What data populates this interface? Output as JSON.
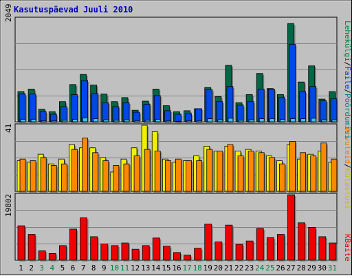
{
  "title": "Kasutuspäevad Juuli 2010",
  "colors": {
    "background": "#C0C0C0",
    "title": "#0000C0",
    "weekend_label": "#008040",
    "weekday_label": "#000000",
    "pages": "#006644",
    "files": "#0047E8",
    "hits": "#40C0E0",
    "visits": "#F0F000",
    "visitors": "#FF8800",
    "bytes": "#EE0000"
  },
  "legend": {
    "top": [
      {
        "label": "Lehekülgi",
        "color": "#008040"
      },
      {
        "label": "/",
        "color": "#000000"
      },
      {
        "label": "Faile",
        "color": "#0040C0"
      },
      {
        "label": "/",
        "color": "#000000"
      },
      {
        "label": "Pöördumisi",
        "color": "#008080"
      }
    ],
    "middle": [
      {
        "label": "Arvuteid",
        "color": "#E08000"
      },
      {
        "label": "/",
        "color": "#000000"
      },
      {
        "label": "Külastusi",
        "color": "#C0C000"
      }
    ],
    "bottom": [
      {
        "label": "KBaite",
        "color": "#E00000"
      }
    ]
  },
  "chart_data": [
    {
      "type": "bar",
      "panel": "top",
      "max_label": "2049",
      "ylim": [
        0,
        2049
      ],
      "categories": [
        "1",
        "2",
        "3",
        "4",
        "5",
        "6",
        "7",
        "8",
        "9",
        "10",
        "11",
        "12",
        "13",
        "14",
        "15",
        "16",
        "17",
        "18",
        "19",
        "20",
        "21",
        "22",
        "23",
        "24",
        "25",
        "26",
        "27",
        "28",
        "29",
        "30",
        "31"
      ],
      "weekend_days": [
        "3",
        "4",
        "10",
        "11",
        "17",
        "18",
        "24",
        "25",
        "31"
      ],
      "series": [
        {
          "name": "Lehekülgi",
          "values": [
            600,
            650,
            250,
            200,
            400,
            740,
            940,
            730,
            550,
            400,
            480,
            230,
            410,
            650,
            320,
            200,
            220,
            260,
            680,
            500,
            1120,
            380,
            540,
            960,
            660,
            540,
            1950,
            790,
            1110,
            450,
            600
          ]
        },
        {
          "name": "Faile",
          "values": [
            550,
            550,
            200,
            150,
            300,
            540,
            820,
            560,
            380,
            300,
            380,
            190,
            350,
            520,
            220,
            150,
            160,
            260,
            640,
            400,
            700,
            330,
            400,
            650,
            650,
            480,
            1540,
            600,
            700,
            420,
            460
          ]
        },
        {
          "name": "Pöördumisi",
          "values": [
            50,
            50,
            20,
            20,
            30,
            50,
            80,
            60,
            40,
            30,
            40,
            20,
            30,
            50,
            20,
            10,
            20,
            20,
            60,
            40,
            70,
            30,
            40,
            60,
            60,
            50,
            60,
            60,
            70,
            40,
            40
          ]
        }
      ]
    },
    {
      "type": "bar",
      "panel": "middle",
      "max_label": "41",
      "ylim": [
        0,
        41
      ],
      "categories": [
        "1",
        "2",
        "3",
        "4",
        "5",
        "6",
        "7",
        "8",
        "9",
        "10",
        "11",
        "12",
        "13",
        "14",
        "15",
        "16",
        "17",
        "18",
        "19",
        "20",
        "21",
        "22",
        "23",
        "24",
        "25",
        "26",
        "27",
        "28",
        "29",
        "30",
        "31"
      ],
      "series": [
        {
          "name": "Külastusi",
          "values": [
            19,
            18,
            23,
            17,
            20,
            29,
            27,
            27,
            21,
            12,
            20,
            27,
            41,
            37,
            20,
            18,
            19,
            22,
            28,
            25,
            28,
            25,
            26,
            25,
            22,
            19,
            29,
            20,
            23,
            25,
            18
          ]
        },
        {
          "name": "Arvuteid",
          "values": [
            20,
            19,
            21,
            16,
            17,
            26,
            33,
            24,
            19,
            16,
            17,
            22,
            26,
            25,
            19,
            20,
            19,
            19,
            26,
            25,
            29,
            22,
            25,
            24,
            21,
            17,
            31,
            24,
            22,
            30,
            20
          ]
        }
      ]
    },
    {
      "type": "bar",
      "panel": "bottom",
      "max_label": "19802",
      "ylim": [
        0,
        19802
      ],
      "categories": [
        "1",
        "2",
        "3",
        "4",
        "5",
        "6",
        "7",
        "8",
        "9",
        "10",
        "11",
        "12",
        "13",
        "14",
        "15",
        "16",
        "17",
        "18",
        "19",
        "20",
        "21",
        "22",
        "23",
        "24",
        "25",
        "26",
        "27",
        "28",
        "29",
        "30",
        "31"
      ],
      "series": [
        {
          "name": "KBaite",
          "values": [
            10400,
            7800,
            2800,
            2000,
            4400,
            9400,
            12800,
            7100,
            4900,
            4400,
            5200,
            3300,
            4400,
            6700,
            4200,
            2300,
            1500,
            3600,
            10900,
            5500,
            10600,
            4800,
            5800,
            9600,
            6800,
            7800,
            19800,
            11300,
            9900,
            7100,
            5200
          ]
        }
      ]
    }
  ]
}
